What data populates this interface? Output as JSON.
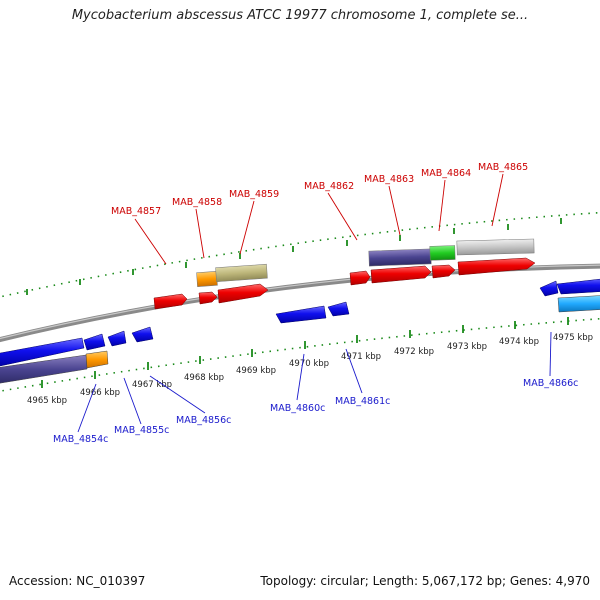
{
  "header": {
    "title": "Mycobacterium abscessus ATCC 19977 chromosome 1, complete se..."
  },
  "footer": {
    "accession": "Accession: NC_010397",
    "summary": "Topology: circular; Length: 5,067,172 bp; Genes: 4,970"
  },
  "scale": {
    "ticks": [
      {
        "label": "4965 kbp"
      },
      {
        "label": "4966 kbp"
      },
      {
        "label": "4967 kbp"
      },
      {
        "label": "4968 kbp"
      },
      {
        "label": "4969 kbp"
      },
      {
        "label": "4970 kbp"
      },
      {
        "label": "4971 kbp"
      },
      {
        "label": "4972 kbp"
      },
      {
        "label": "4973 kbp"
      },
      {
        "label": "4974 kbp"
      },
      {
        "label": "4975 kbp"
      }
    ]
  },
  "genes_forward": [
    {
      "label": "MAB_4857"
    },
    {
      "label": "MAB_4858"
    },
    {
      "label": "MAB_4859"
    },
    {
      "label": "MAB_4862"
    },
    {
      "label": "MAB_4863"
    },
    {
      "label": "MAB_4864"
    },
    {
      "label": "MAB_4865"
    }
  ],
  "genes_reverse": [
    {
      "label": "MAB_4854c"
    },
    {
      "label": "MAB_4855c"
    },
    {
      "label": "MAB_4856c"
    },
    {
      "label": "MAB_4860c"
    },
    {
      "label": "MAB_4861c"
    },
    {
      "label": "MAB_4866c"
    }
  ],
  "colors": {
    "forward_gene": "#e8000b",
    "reverse_gene": "#1a1aff",
    "forward_label": "#cc0000",
    "reverse_label": "#1a1acc",
    "tick": "#1a8a1a",
    "backbone": "#8a8a8a"
  }
}
